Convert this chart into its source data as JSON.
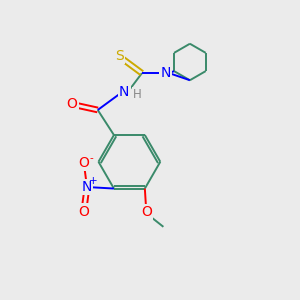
{
  "background_color": "#ebebeb",
  "figsize": [
    3.0,
    3.0
  ],
  "dpi": 100,
  "atom_colors": {
    "C": "#3a8a6a",
    "N": "#0000ff",
    "O": "#ff0000",
    "S": "#ccaa00",
    "H": "#888888"
  },
  "lw": 1.4,
  "fs": 8.5
}
